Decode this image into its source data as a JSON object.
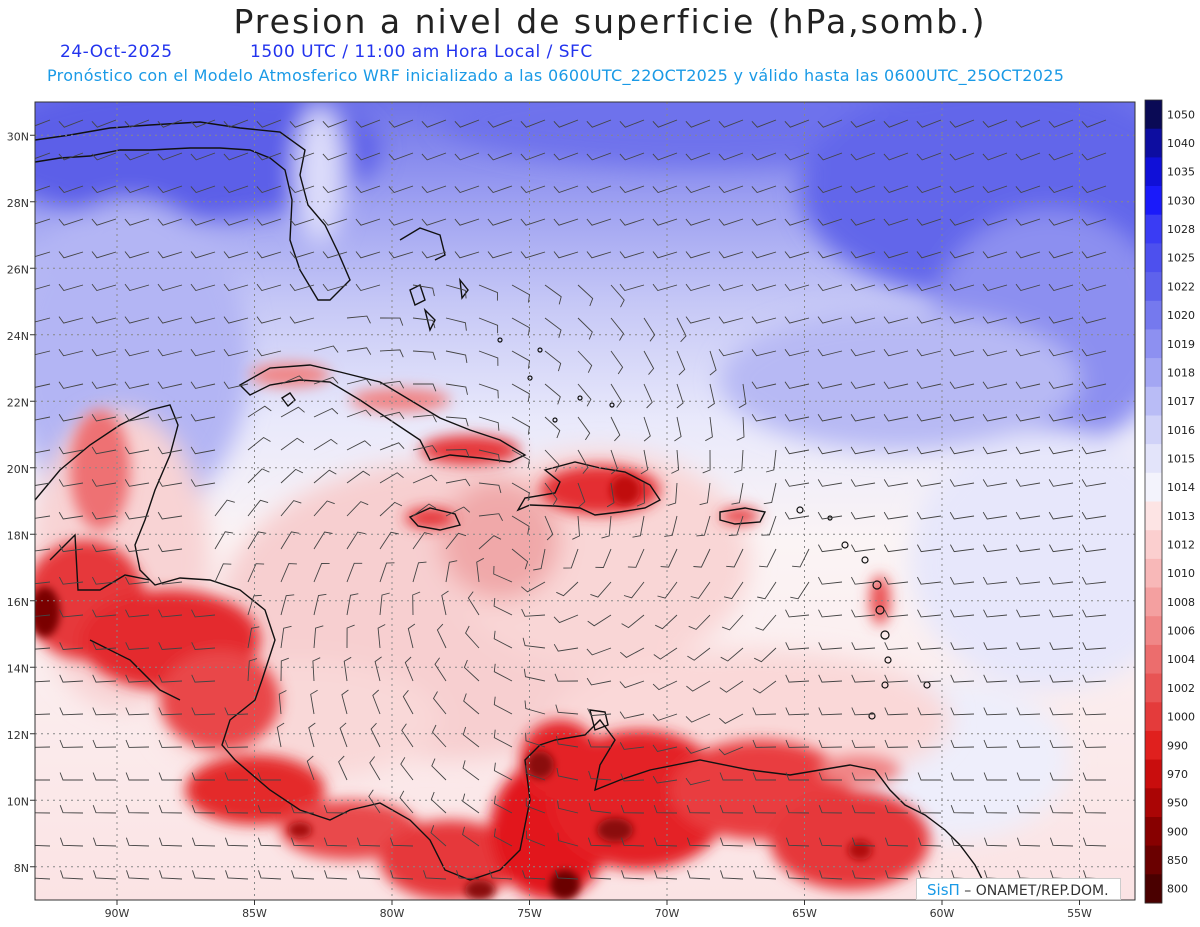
{
  "header": {
    "title": "Presion a nivel de superficie (hPa,somb.)",
    "date": "24-Oct-2025",
    "time_line": "1500 UTC / 11:00 am Hora Local / SFC",
    "forecast_line": "Pronóstico con el Modelo Atmosferico WRF inicializado a las 0600UTC_22OCT2025 y válido hasta las  0600UTC_25OCT2025"
  },
  "map": {
    "lat_labels": [
      "30N",
      "28N",
      "26N",
      "24N",
      "22N",
      "20N",
      "18N",
      "16N",
      "14N",
      "12N",
      "10N",
      "8N"
    ],
    "lon_labels": [
      "90W",
      "85W",
      "80W",
      "75W",
      "70W",
      "65W",
      "60W",
      "55W"
    ],
    "lat_range": [
      7,
      31
    ],
    "lon_range": [
      -92,
      -52
    ],
    "wind_barbs": true,
    "colors": {
      "low_dark": "#6b0000",
      "low": "#e8141b",
      "mid_pink": "#f9c8c8",
      "neutral": "#fbeff0",
      "high_light": "#c9caf6",
      "high": "#6569e8"
    }
  },
  "colorbar": {
    "levels": [
      "1050",
      "1040",
      "1035",
      "1030",
      "1028",
      "1025",
      "1022",
      "1020",
      "1019",
      "1018",
      "1017",
      "1016",
      "1015",
      "1014",
      "1013",
      "1012",
      "1010",
      "1008",
      "1006",
      "1004",
      "1002",
      "1000",
      "990",
      "970",
      "950",
      "900",
      "850",
      "800"
    ],
    "colors": [
      "#0a0a55",
      "#0d0da0",
      "#1010d8",
      "#1a1afa",
      "#3a3cf4",
      "#4d50ee",
      "#5e62ec",
      "#7579ee",
      "#8d90f1",
      "#a3a6f3",
      "#b9bcf6",
      "#d0d2f8",
      "#e3e4fa",
      "#f3f3fc",
      "#fde4e4",
      "#fbcfcf",
      "#f8b8b8",
      "#f4a0a0",
      "#f08787",
      "#ec6d6d",
      "#e85454",
      "#e43b3b",
      "#e0201e",
      "#c90d0d",
      "#aa0505",
      "#870000",
      "#6a0000",
      "#4a0000"
    ]
  },
  "credit": {
    "brand": "SisΠ",
    "text": "– ONAMET/REP.DOM."
  }
}
